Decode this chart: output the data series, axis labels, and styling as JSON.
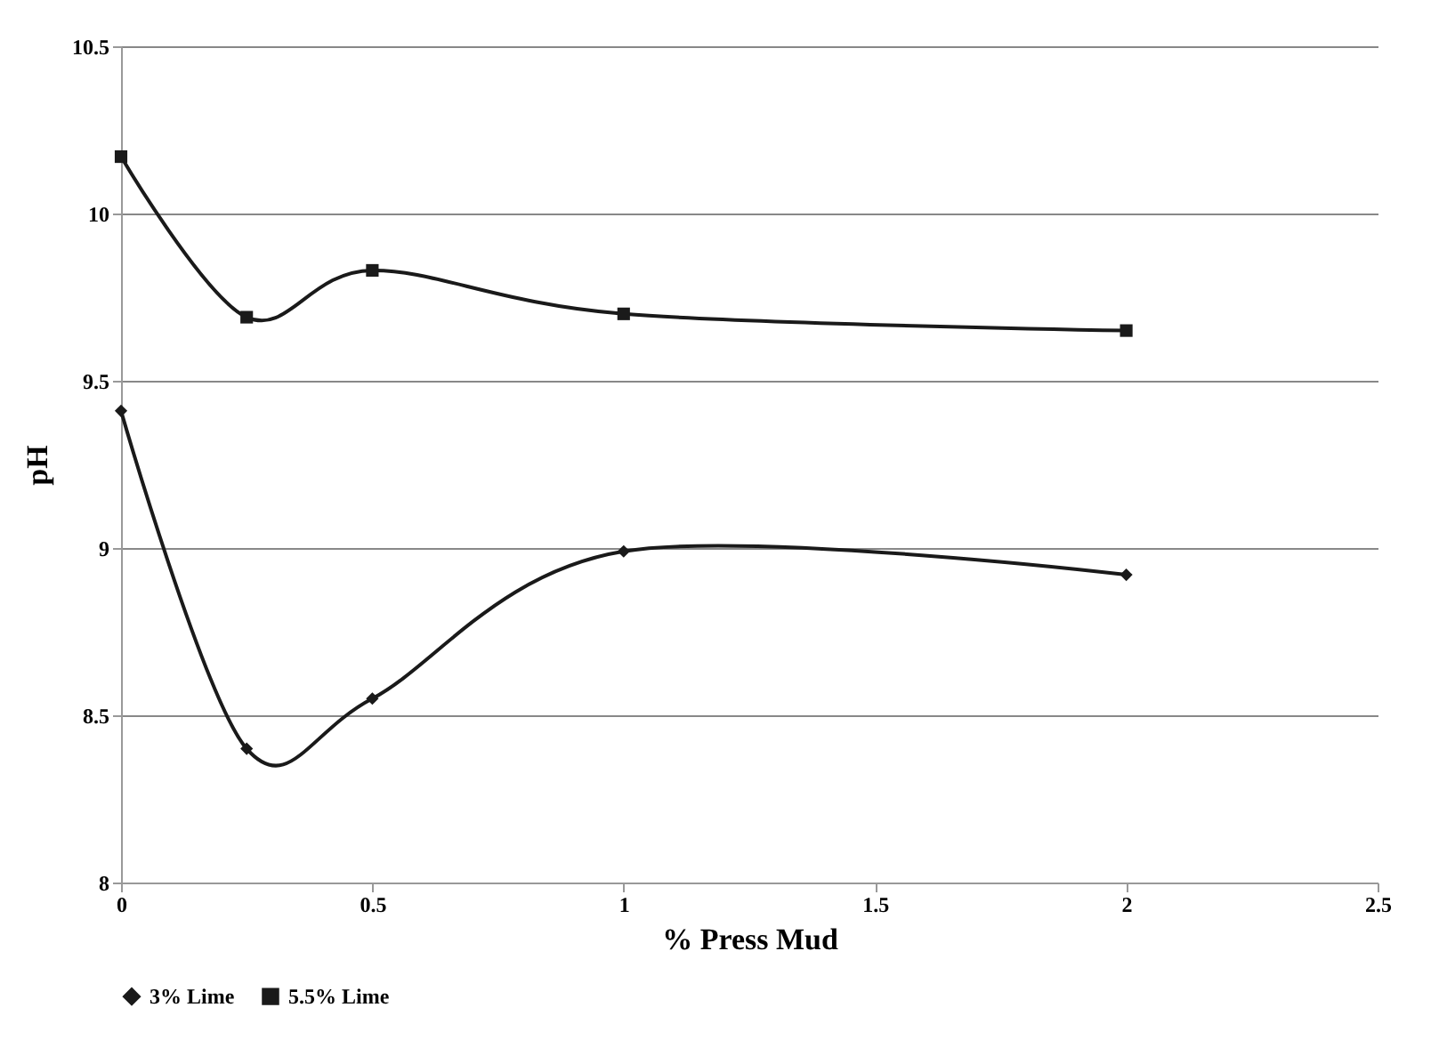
{
  "chart_data": {
    "type": "line",
    "xlabel": "% Press Mud",
    "ylabel": "pH",
    "x": [
      0,
      0.25,
      0.5,
      1,
      2
    ],
    "series": [
      {
        "name": "3% Lime",
        "color": "#1a1a1a",
        "marker": "diamond",
        "values": [
          9.41,
          8.4,
          8.55,
          8.99,
          8.92
        ]
      },
      {
        "name": "5.5% Lime",
        "color": "#1a1a1a",
        "marker": "square",
        "values": [
          10.17,
          9.69,
          9.83,
          9.7,
          9.65
        ]
      }
    ],
    "xlim": [
      0,
      2.5
    ],
    "xticks": [
      0,
      0.5,
      1,
      1.5,
      2,
      2.5
    ],
    "ylim": [
      8,
      10.5
    ],
    "yticks": [
      8,
      8.5,
      9,
      9.5,
      10,
      10.5
    ],
    "grid": "y",
    "legend": "bottom",
    "line_style": "solid"
  }
}
